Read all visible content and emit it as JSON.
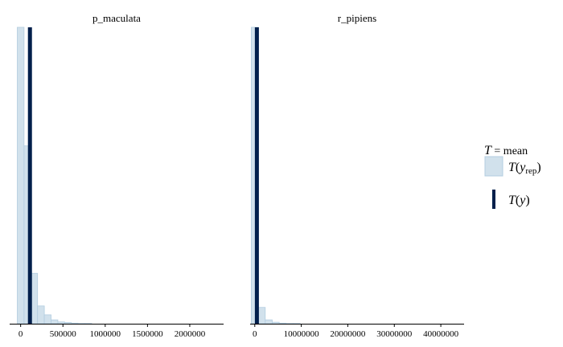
{
  "colors": {
    "rep_fill": "#d1e1ec",
    "rep_stroke": "#b3cde0",
    "observed": "#011f4b",
    "axis": "#000000"
  },
  "legend": {
    "title_T": "T",
    "title_eq": " = mean",
    "rep_T": "T",
    "rep_y": "y",
    "rep_sub": "rep",
    "obs_T": "T",
    "obs_y": "y",
    "lparen": "(",
    "rparen": ")"
  },
  "chart_data": [
    {
      "type": "bar",
      "title": "p_maculata",
      "xlim": [
        -130000,
        2400000
      ],
      "ylim": [
        0,
        1
      ],
      "ticks": [
        0,
        500000,
        1000000,
        1500000,
        2000000
      ],
      "tick_labels": [
        "0",
        "500000",
        "1000000",
        "1500000",
        "2000000"
      ],
      "bin_width": 80000,
      "bin_starts": [
        -40000,
        40000,
        120000,
        200000,
        280000,
        360000,
        440000,
        520000,
        600000,
        680000,
        760000
      ],
      "values": [
        1.0,
        0.6,
        0.17,
        0.06,
        0.03,
        0.013,
        0.006,
        0.004,
        0.002,
        0.001,
        0.001
      ],
      "observed": 110000
    },
    {
      "type": "bar",
      "title": "r_pipiens",
      "xlim": [
        -1000000,
        45000000
      ],
      "ylim": [
        0,
        1
      ],
      "ticks": [
        0,
        10000000,
        20000000,
        30000000,
        40000000
      ],
      "tick_labels": [
        "0",
        "10000000",
        "20000000",
        "30000000",
        "40000000"
      ],
      "bin_width": 1500000,
      "bin_starts": [
        -750000,
        750000,
        2250000,
        3750000,
        5250000,
        6750000,
        8250000
      ],
      "values": [
        1.0,
        0.055,
        0.013,
        0.005,
        0.002,
        0.001,
        0.001
      ],
      "observed": 450000
    }
  ]
}
